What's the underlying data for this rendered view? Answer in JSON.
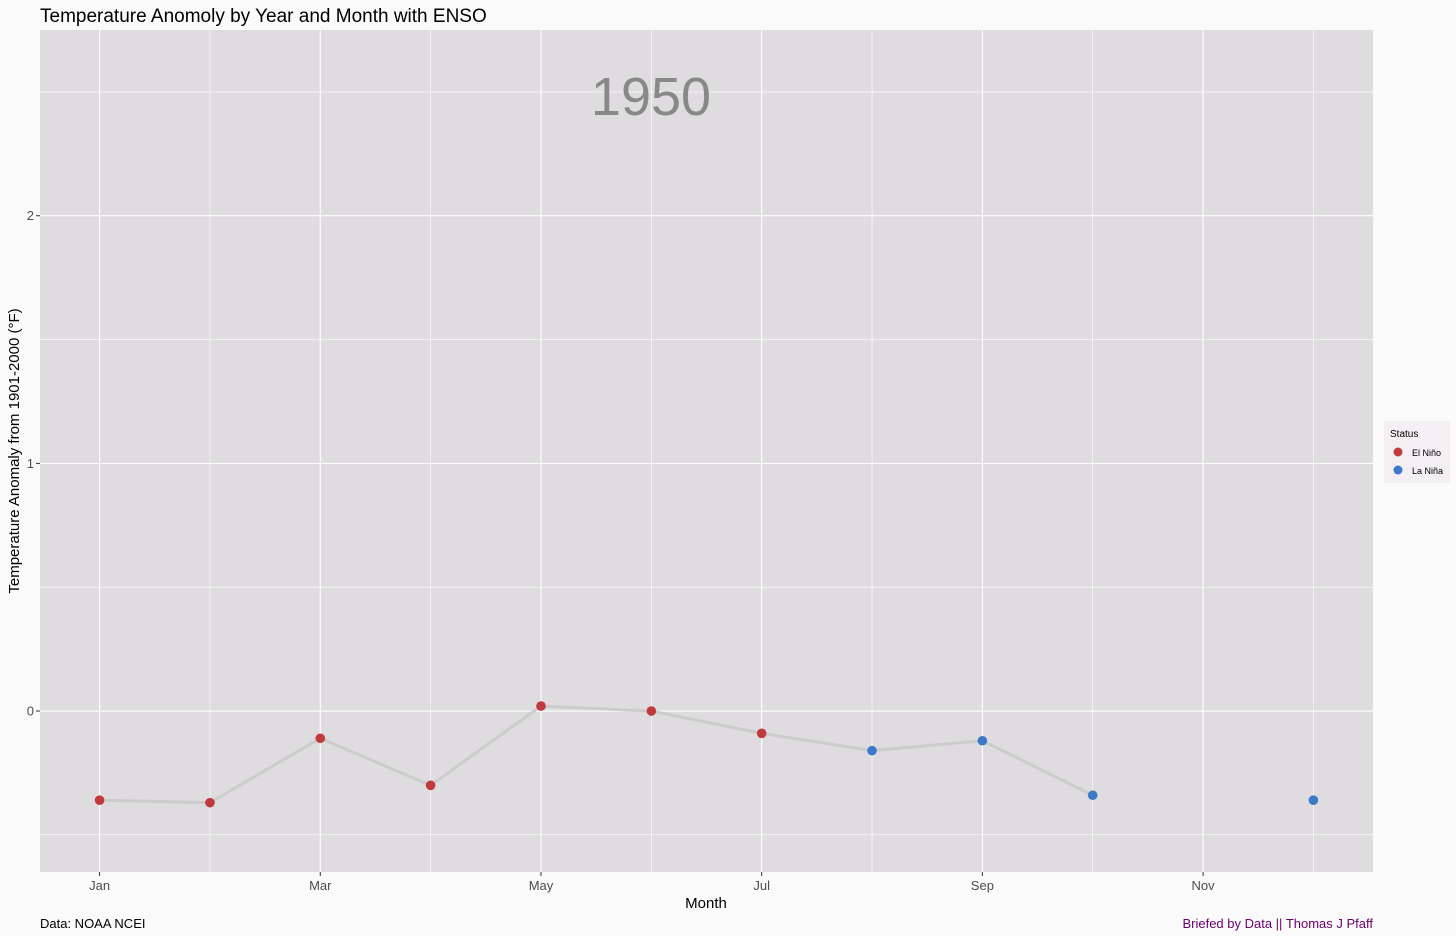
{
  "chart_data": {
    "type": "line",
    "title": "Temperature Anomoly by Year and Month with ENSO",
    "xlabel": "Month",
    "ylabel": "Temperature Anomaly from 1901-2000  (°F)",
    "year_label": "1950",
    "caption_left": "Data: NOAA NCEI",
    "caption_right": "Briefed by Data || Thomas J Pfaff",
    "x_ticks": [
      "Jan",
      "Mar",
      "May",
      "Jul",
      "Sep",
      "Nov"
    ],
    "x_tick_months": [
      1,
      3,
      5,
      7,
      9,
      11
    ],
    "y_ticks": [
      0,
      1,
      2
    ],
    "y_tick_labels": [
      "0",
      "1",
      "2"
    ],
    "xlim": [
      0.46,
      12.54
    ],
    "ylim": [
      -0.65,
      2.75
    ],
    "grid": true,
    "legend": {
      "title": "Status",
      "position": "right",
      "entries": [
        {
          "label": "El Niño",
          "color": "#c0393d"
        },
        {
          "label": "La Niña",
          "color": "#3b79c9"
        }
      ]
    },
    "colors": {
      "panel_background": "#dfdcdf",
      "grid_line": "#ffffff",
      "line": "#cccccc",
      "el_nino": "#c0393d",
      "la_nina": "#3b79c9",
      "caption_right": "#6a006a"
    },
    "series": [
      {
        "x": [
          1,
          2,
          3,
          4,
          5,
          6,
          7,
          8,
          9,
          10,
          12
        ],
        "y": [
          -0.36,
          -0.37,
          -0.11,
          -0.3,
          0.02,
          0.0,
          -0.09,
          -0.16,
          -0.12,
          -0.34,
          -0.36
        ],
        "status": [
          "El Niño",
          "El Niño",
          "El Niño",
          "El Niño",
          "El Niño",
          "El Niño",
          "El Niño",
          "La Niña",
          "La Niña",
          "La Niña",
          "La Niña"
        ],
        "line_until_index": 9
      }
    ]
  }
}
